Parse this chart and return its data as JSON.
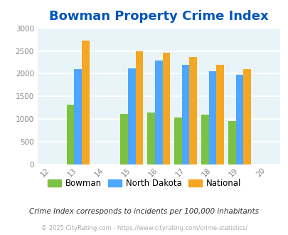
{
  "title": "Bowman Property Crime Index",
  "years": [
    2013,
    2015,
    2016,
    2017,
    2018,
    2019
  ],
  "bowman": [
    1310,
    1110,
    1140,
    1040,
    1090,
    950
  ],
  "north_dakota": [
    2100,
    2110,
    2290,
    2190,
    2050,
    1975
  ],
  "national": [
    2730,
    2500,
    2460,
    2360,
    2190,
    2095
  ],
  "bar_width": 0.28,
  "colors": {
    "bowman": "#7dc142",
    "north_dakota": "#4da6ff",
    "national": "#f5a623"
  },
  "xlim": [
    2011.5,
    2020.5
  ],
  "ylim": [
    0,
    3000
  ],
  "yticks": [
    0,
    500,
    1000,
    1500,
    2000,
    2500,
    3000
  ],
  "background_color": "#e8f4f8",
  "grid_color": "#ffffff",
  "title_color": "#0055bb",
  "title_fontsize": 13,
  "legend_labels": [
    "Bowman",
    "North Dakota",
    "National"
  ],
  "footnote1": "Crime Index corresponds to incidents per 100,000 inhabitants",
  "footnote2": "© 2025 CityRating.com - https://www.cityrating.com/crime-statistics/"
}
